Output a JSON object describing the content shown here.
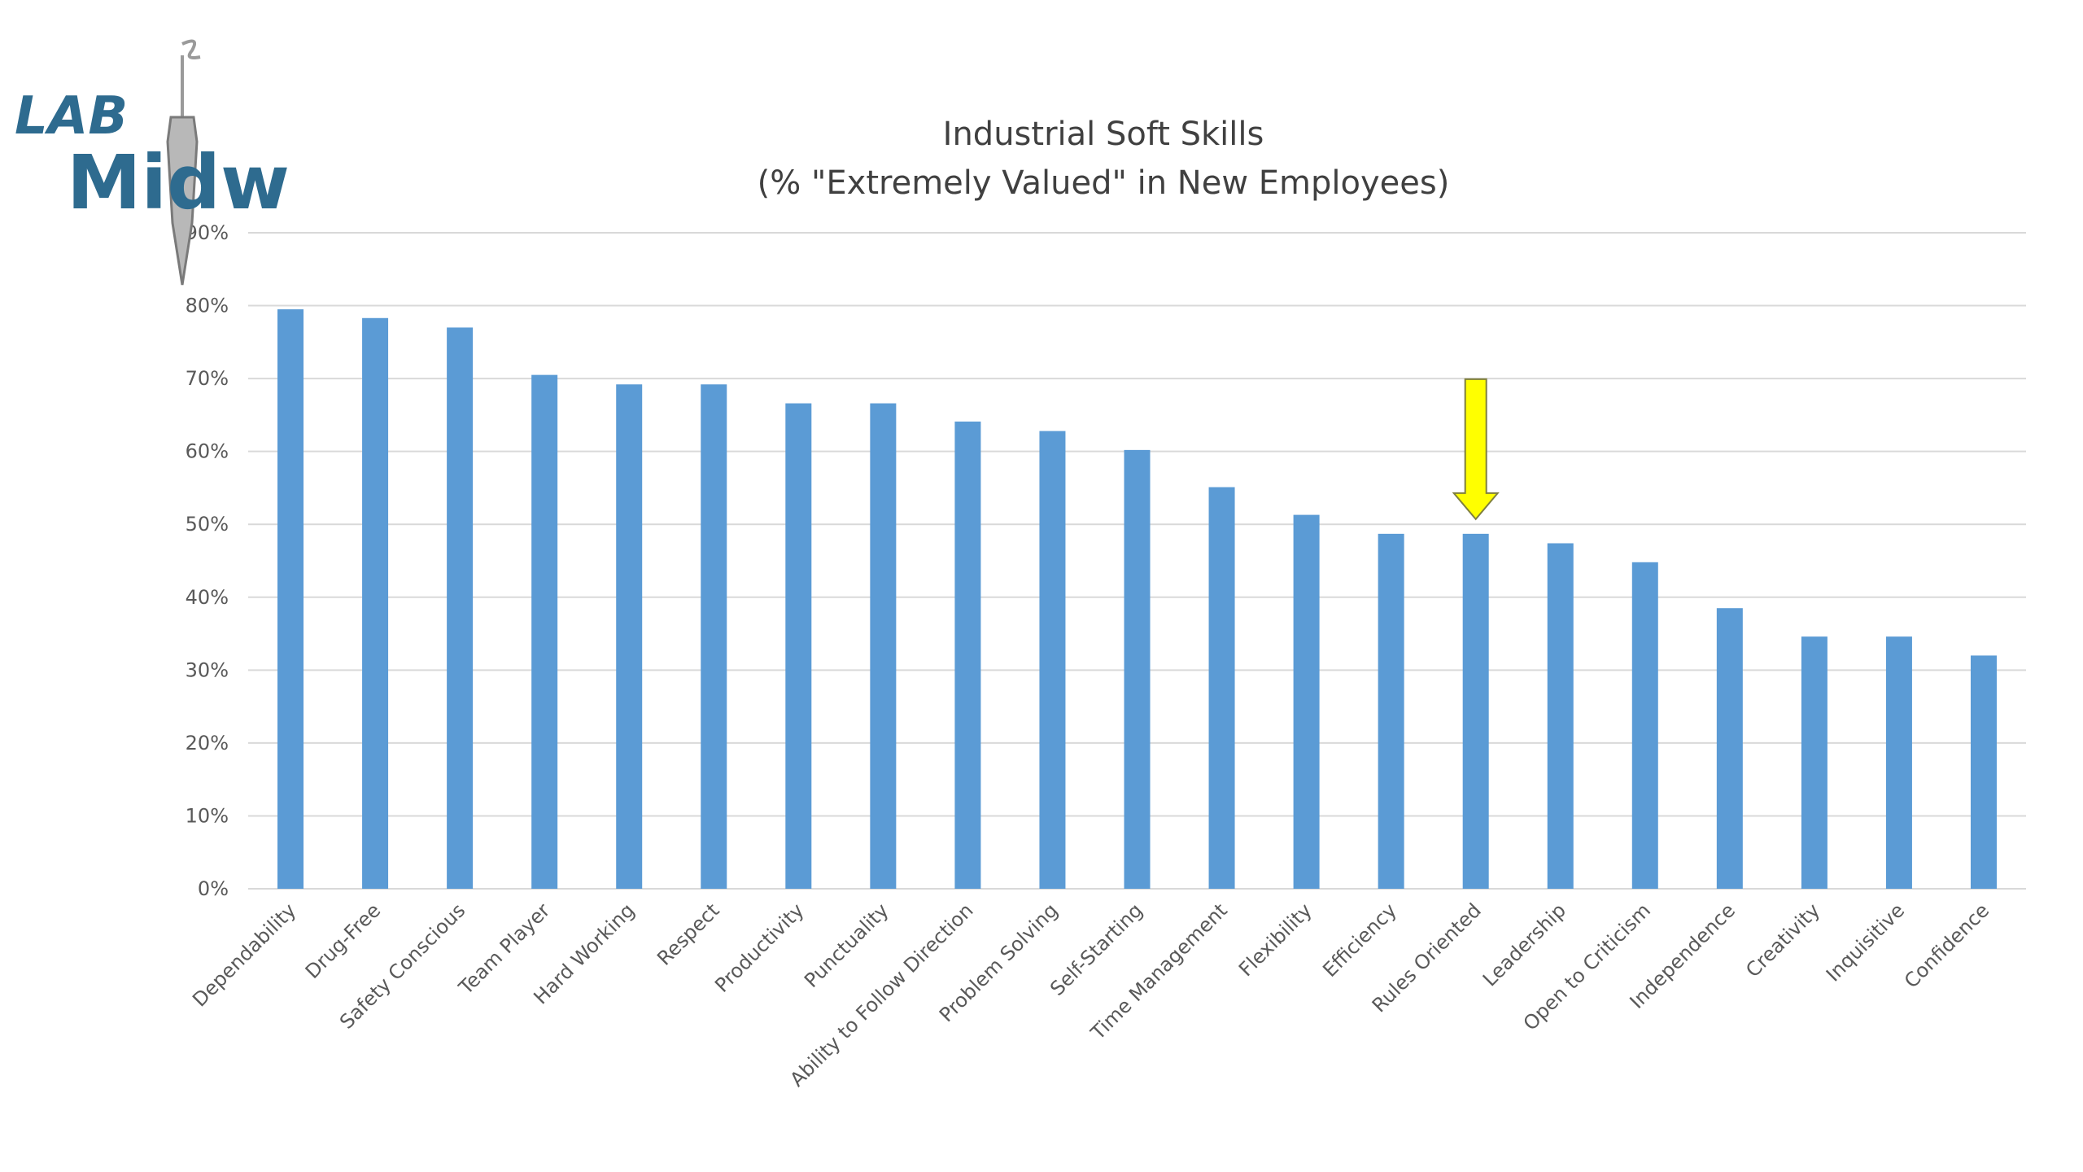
{
  "logo": {
    "line1": "LAB",
    "line2": "Midwest"
  },
  "chart_data": {
    "type": "bar",
    "title": "Industrial Soft Skills",
    "subtitle": "(% \"Extremely Valued\" in New Employees)",
    "xlabel": "",
    "ylabel": "",
    "ylim": [
      0,
      90
    ],
    "yticks": [
      "0%",
      "10%",
      "20%",
      "30%",
      "40%",
      "50%",
      "60%",
      "70%",
      "80%",
      "90%"
    ],
    "grid": true,
    "bar_color": "#5b9bd5",
    "categories": [
      "Dependability",
      "Drug-Free",
      "Safety Conscious",
      "Team Player",
      "Hard Working",
      "Respect",
      "Productivity",
      "Punctuality",
      "Ability to Follow Direction",
      "Problem Solving",
      "Self-Starting",
      "Time Management",
      "Flexibility",
      "Efficiency",
      "Rules Oriented",
      "Leadership",
      "Open to Criticism",
      "Independence",
      "Creativity",
      "Inquisitive",
      "Confidence"
    ],
    "values": [
      79.5,
      78.3,
      77,
      70.5,
      69.2,
      69.2,
      66.6,
      66.6,
      64.1,
      62.8,
      60.2,
      55.1,
      51.3,
      48.7,
      48.7,
      47.4,
      44.8,
      38.5,
      34.6,
      34.6,
      32
    ],
    "highlight": {
      "category": "Rules Oriented",
      "marker": "down-arrow",
      "color": "#ffff00"
    }
  }
}
